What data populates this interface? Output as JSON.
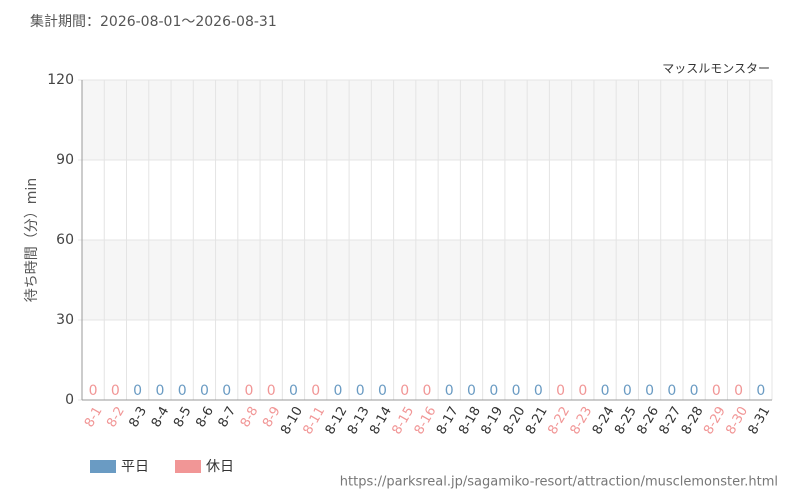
{
  "chart_data": {
    "type": "bar",
    "title": "集計期間：2026-08-01～2026-08-31",
    "subtitle": "マッスルモンスター",
    "y_label": "待ち時間（分）min",
    "source": "https://parksreal.jp/sagamiko-resort/attraction/musclemonster.html",
    "categories": [
      "8-1",
      "8-2",
      "8-3",
      "8-4",
      "8-5",
      "8-6",
      "8-7",
      "8-8",
      "8-9",
      "8-10",
      "8-11",
      "8-12",
      "8-13",
      "8-14",
      "8-15",
      "8-16",
      "8-17",
      "8-18",
      "8-19",
      "8-20",
      "8-21",
      "8-22",
      "8-23",
      "8-24",
      "8-25",
      "8-26",
      "8-27",
      "8-28",
      "8-29",
      "8-30",
      "8-31"
    ],
    "series": [
      {
        "name": "平日",
        "color": "#6a9bc3",
        "values": [
          null,
          null,
          0,
          0,
          0,
          0,
          0,
          null,
          null,
          0,
          null,
          0,
          0,
          0,
          null,
          null,
          0,
          0,
          0,
          0,
          0,
          null,
          null,
          0,
          0,
          0,
          0,
          0,
          null,
          null,
          0
        ]
      },
      {
        "name": "休日",
        "color": "#f19696",
        "values": [
          0,
          0,
          null,
          null,
          null,
          null,
          null,
          0,
          0,
          null,
          0,
          null,
          null,
          null,
          0,
          0,
          null,
          null,
          null,
          null,
          null,
          0,
          0,
          null,
          null,
          null,
          null,
          null,
          0,
          0,
          null
        ]
      }
    ],
    "ylim": [
      0,
      120
    ],
    "yticks": [
      0,
      30,
      60,
      90,
      120
    ],
    "grid": true
  }
}
